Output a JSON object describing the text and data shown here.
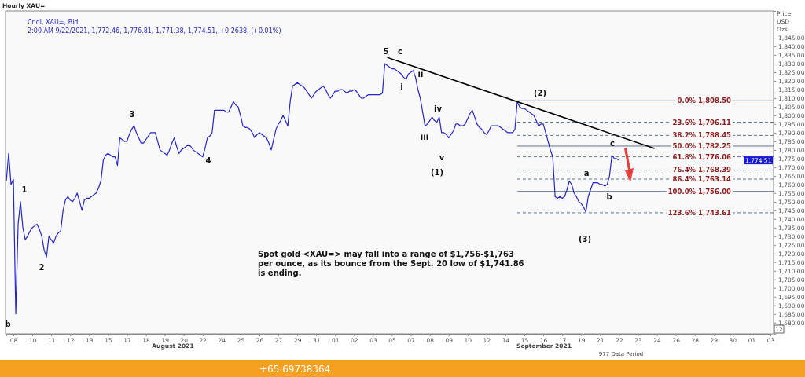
{
  "chart_data": {
    "type": "line",
    "title": "Hourly XAU=",
    "subtitle": "Cndl, XAU=, Bid",
    "ylabel": "Price\nUSD\nOzs",
    "categories": [
      null,
      null,
      null,
      "08",
      null,
      null,
      null,
      null,
      null,
      null,
      null,
      "10",
      null,
      null,
      null,
      null,
      null,
      null,
      null,
      "11",
      null,
      null,
      null,
      null,
      null,
      null,
      null,
      "12",
      null,
      null,
      null,
      null,
      null,
      null,
      null,
      "13",
      null,
      null,
      null,
      null,
      null,
      null,
      null,
      "15",
      null,
      null,
      null,
      null,
      null,
      null,
      null,
      "17",
      null,
      null,
      null,
      null,
      null,
      null,
      null,
      "18",
      null,
      null,
      null,
      null,
      null,
      null,
      null,
      "19",
      null,
      null,
      null,
      null,
      null,
      null,
      null,
      "20",
      null,
      null,
      null,
      null,
      null,
      null,
      null,
      "22",
      null,
      null,
      null,
      null,
      null,
      null,
      null,
      "24",
      null,
      null,
      null,
      null,
      null,
      null,
      null,
      "25",
      null,
      null,
      null,
      null,
      null,
      null,
      null,
      "26",
      null,
      null,
      null,
      null,
      null,
      null,
      null,
      "27",
      null,
      null,
      null,
      null,
      null,
      null,
      null,
      "29",
      null,
      null,
      null,
      null,
      null,
      null,
      null,
      "31",
      null,
      null,
      null,
      null,
      null,
      null,
      null,
      "01",
      null,
      null,
      null,
      null,
      null,
      null,
      null,
      "02",
      null,
      null,
      null,
      null,
      null,
      null,
      null,
      "03",
      null,
      null,
      null,
      null,
      null,
      null,
      null,
      "05",
      null,
      null,
      null,
      null,
      null,
      null,
      null,
      "07",
      null,
      null,
      null,
      null,
      null,
      null,
      null,
      "08",
      null,
      null,
      null,
      null,
      null,
      null,
      null,
      "09",
      null,
      null,
      null,
      null,
      null,
      null,
      null,
      "10",
      null,
      null,
      null,
      null,
      null,
      null,
      null,
      "12",
      null,
      null,
      null,
      null,
      null,
      null,
      null,
      "14",
      null,
      null,
      null,
      null,
      null,
      null,
      null,
      "15",
      null,
      null,
      null,
      null,
      null,
      null,
      null,
      "16",
      null,
      null,
      null,
      null,
      null,
      null,
      null,
      "17",
      null,
      null,
      null,
      null,
      null,
      null,
      null,
      "19",
      null,
      null,
      null,
      null,
      null,
      null,
      null,
      "21",
      null,
      null,
      null,
      null,
      null,
      null,
      null,
      "22",
      null,
      null,
      null,
      null,
      null,
      null,
      null,
      "23",
      null,
      null,
      null,
      null,
      null,
      null,
      null,
      "24",
      null,
      null,
      null,
      null,
      null,
      null,
      null,
      "26",
      null,
      null,
      null,
      null,
      null,
      null,
      null,
      "28",
      null,
      null,
      null,
      null,
      null,
      null,
      null,
      "29",
      null,
      null,
      null,
      null,
      null,
      null,
      null,
      "30",
      null,
      null,
      null,
      null,
      null,
      null,
      null,
      "01",
      null,
      null,
      null,
      null,
      null,
      null,
      null,
      "03"
    ],
    "ylim": [
      1673.5,
      1860.5
    ],
    "yticks": [
      {
        "value": 1680,
        "label": "1,680.00"
      },
      {
        "value": 1685,
        "label": "1,685.00"
      },
      {
        "value": 1690,
        "label": "1,690.00"
      },
      {
        "value": 1695,
        "label": "1,695.00"
      },
      {
        "value": 1700,
        "label": "1,700.00"
      },
      {
        "value": 1705,
        "label": "1,705.00"
      },
      {
        "value": 1710,
        "label": "1,710.00"
      },
      {
        "value": 1715,
        "label": "1,715.00"
      },
      {
        "value": 1720,
        "label": "1,720.00"
      },
      {
        "value": 1725,
        "label": "1,725.00"
      },
      {
        "value": 1730,
        "label": "1,730.00"
      },
      {
        "value": 1735,
        "label": "1,735.00"
      },
      {
        "value": 1740,
        "label": "1,740.00"
      },
      {
        "value": 1745,
        "label": "1,745.00"
      },
      {
        "value": 1750,
        "label": "1,750.00"
      },
      {
        "value": 1755,
        "label": "1,755.00"
      },
      {
        "value": 1760,
        "label": "1,760.00"
      },
      {
        "value": 1765,
        "label": "1,765.00"
      },
      {
        "value": 1770,
        "label": "1,770.00"
      },
      {
        "value": 1775,
        "label": "1,775.00"
      },
      {
        "value": 1780,
        "label": "1,780.00"
      },
      {
        "value": 1785,
        "label": "1,785.00"
      },
      {
        "value": 1790,
        "label": "1,790.00"
      },
      {
        "value": 1795,
        "label": "1,795.00"
      },
      {
        "value": 1800,
        "label": "1,800.00"
      },
      {
        "value": 1805,
        "label": "1,805.00"
      },
      {
        "value": 1810,
        "label": "1,810.00"
      },
      {
        "value": 1815,
        "label": "1,815.00"
      },
      {
        "value": 1820,
        "label": "1,820.00"
      },
      {
        "value": 1825,
        "label": "1,825.00"
      },
      {
        "value": 1830,
        "label": "1,830.00"
      },
      {
        "value": 1835,
        "label": "1,835.00"
      },
      {
        "value": 1840,
        "label": "1,840.00"
      },
      {
        "value": 1845,
        "label": "1,845.00"
      }
    ],
    "series": [
      {
        "color": "#2626c8",
        "values": [
          1762,
          1778,
          1760,
          1763,
          1685,
          1737,
          1750,
          1735,
          1728,
          1730,
          1733,
          1735,
          1736,
          1737,
          1734,
          1730,
          1722,
          1718,
          1730,
          1728,
          1726,
          1730,
          1732,
          1733,
          1745,
          1751,
          1753,
          1751,
          1750,
          1752,
          1755,
          1750,
          1745,
          1751,
          1752,
          1752,
          1753,
          1754,
          1755,
          1758,
          1762,
          1774,
          1777,
          1778,
          1777,
          1776,
          1776,
          1771,
          1787,
          1786,
          1785,
          1785,
          1789,
          1792,
          1794,
          1790,
          1787,
          1784,
          1784,
          1786,
          1788,
          1790,
          1790,
          1790,
          1785,
          1780,
          1779,
          1778,
          1777,
          1780,
          1784,
          1787,
          1782,
          1778,
          1780,
          1781,
          1782,
          1783,
          1782,
          1780,
          1779,
          1778,
          1777,
          1776,
          1781,
          1787,
          1788,
          1790,
          1803,
          1803,
          1803,
          1803,
          1803,
          1802,
          1802,
          1805,
          1808,
          1806,
          1805,
          1800,
          1794,
          1793,
          1793,
          1792,
          1790,
          1787,
          1789,
          1790,
          1789,
          1788,
          1787,
          1784,
          1780,
          1786,
          1792,
          1795,
          1797,
          1800,
          1797,
          1794,
          1808,
          1817,
          1818,
          1819,
          1818,
          1817,
          1816,
          1814,
          1812,
          1810,
          1812,
          1814,
          1815,
          1816,
          1817,
          1815,
          1812,
          1810,
          1812,
          1814,
          1814,
          1815,
          1815,
          1814,
          1813,
          1814,
          1814,
          1815,
          1814,
          1812,
          1810,
          1810,
          1811,
          1812,
          1812,
          1812,
          1812,
          1812,
          1812,
          1813,
          1830,
          1829,
          1828,
          1827,
          1827,
          1826,
          1825,
          1824,
          1822,
          1821,
          1824,
          1825,
          1826,
          1822,
          1815,
          1810,
          1802,
          1794,
          1795,
          1797,
          1799,
          1797,
          1796,
          1799,
          1790,
          1790,
          1789,
          1787,
          1789,
          1791,
          1795,
          1795,
          1794,
          1794,
          1795,
          1798,
          1801,
          1803,
          1799,
          1795,
          1793,
          1792,
          1790,
          1789,
          1791,
          1794,
          1794,
          1794,
          1794,
          1793,
          1792,
          1791,
          1790,
          1790,
          1790,
          1792,
          1808,
          1805,
          1804,
          1804,
          1803,
          1802,
          1801,
          1800,
          1797,
          1794,
          1795,
          1795,
          1790,
          1785,
          1780,
          1776,
          1753,
          1752,
          1753,
          1752,
          1753,
          1757,
          1762,
          1760,
          1755,
          1753,
          1750,
          1749,
          1747,
          1744,
          1753,
          1757,
          1761,
          1761,
          1761,
          1760,
          1760,
          1759,
          1760,
          1765,
          1777,
          1775,
          1775,
          1774,
          null,
          null,
          null,
          null,
          null,
          null,
          null,
          null,
          null,
          null,
          null,
          null,
          null,
          null,
          null,
          null,
          null,
          null,
          null,
          null,
          null,
          null,
          null,
          null,
          null,
          null,
          null,
          null,
          null,
          null,
          null,
          null,
          null,
          null,
          null,
          null,
          null,
          null,
          null,
          null,
          null,
          null,
          null,
          null,
          null,
          null,
          null,
          null,
          null,
          null,
          null,
          null,
          null,
          null,
          null,
          null,
          null,
          null,
          null,
          null,
          null,
          null,
          null,
          null
        ]
      },
      {
        "type": "line",
        "color": "#000000",
        "values": [
          null,
          null,
          null,
          null,
          null,
          null,
          null,
          null,
          null,
          null,
          null,
          null,
          null,
          null,
          null,
          null,
          null,
          null,
          null,
          null,
          null,
          null,
          null,
          null,
          null,
          null,
          null,
          null,
          null,
          null,
          null,
          null,
          null,
          null,
          null,
          null,
          null,
          null,
          null,
          null,
          null,
          null,
          null,
          null,
          null,
          null,
          null,
          null,
          null,
          null,
          null,
          null,
          null,
          null,
          null,
          null,
          null,
          null,
          null,
          null,
          null,
          null,
          null,
          null,
          null,
          null,
          null,
          null,
          null,
          null,
          null,
          null,
          null,
          null,
          null,
          null,
          null,
          null,
          null,
          null,
          null,
          null,
          null,
          null,
          null,
          null,
          null,
          null,
          null,
          null,
          null,
          null,
          null,
          null,
          null,
          null,
          null,
          null,
          null,
          null,
          null,
          null,
          null,
          null,
          null,
          null,
          null,
          null,
          null,
          null,
          null,
          null,
          null,
          null,
          null,
          null,
          null,
          null,
          null,
          null,
          null,
          null,
          null,
          null,
          null,
          null,
          null,
          null,
          null,
          null,
          null,
          null,
          null,
          null,
          null,
          null,
          null,
          null,
          null,
          null,
          null,
          null,
          null,
          null,
          null,
          null,
          null,
          null,
          null,
          null,
          null,
          null,
          null,
          null,
          null,
          null,
          null,
          null,
          null,
          null,
          null,
          1833.6,
          null,
          null,
          null,
          null,
          null,
          null,
          null,
          null,
          null,
          null,
          null,
          null,
          null,
          null,
          null,
          null,
          null,
          null,
          null,
          null,
          null,
          null,
          null,
          null,
          null,
          null,
          null,
          null,
          null,
          null,
          null,
          null,
          null,
          null,
          null,
          null,
          null,
          null,
          null,
          null,
          null,
          null,
          null,
          null,
          null,
          null,
          null,
          null,
          null,
          null,
          null,
          null,
          null,
          null,
          null,
          null,
          null,
          null,
          null,
          null,
          null,
          null,
          null,
          null,
          null,
          null,
          null,
          null,
          null,
          null,
          null,
          null,
          null,
          null,
          null,
          null,
          null,
          null,
          null,
          null,
          null,
          null,
          null,
          null,
          null,
          null,
          null,
          null,
          null,
          null,
          null,
          null,
          null,
          null,
          null,
          null,
          null,
          null,
          null,
          null,
          null,
          null,
          null,
          null,
          null,
          null,
          null,
          null,
          null,
          null,
          null,
          null,
          1780.9,
          null,
          null,
          null,
          null,
          null,
          null,
          null,
          null,
          null,
          null,
          null,
          null,
          null,
          null,
          null,
          null,
          null,
          null,
          null,
          null,
          null,
          null,
          null,
          null,
          null,
          null,
          null,
          null,
          null,
          null,
          null,
          null,
          null,
          null,
          null,
          null,
          null,
          null,
          null,
          null,
          null,
          null,
          null,
          null,
          null,
          null,
          null,
          null,
          null
        ]
      }
    ],
    "ref_lines": [
      {
        "axis": "y",
        "value": 1808.5,
        "label": "0.0% 1,808.50",
        "color": "#5a7894",
        "line_style": "solid"
      },
      {
        "axis": "y",
        "value": 1796.11,
        "label": "23.6% 1,796.11",
        "color": "#5a7894",
        "line_style": "dashed"
      },
      {
        "axis": "y",
        "value": 1788.45,
        "label": "38.2% 1,788.45",
        "color": "#5a7894",
        "line_style": "dashed"
      },
      {
        "axis": "y",
        "value": 1782.25,
        "label": "50.0% 1,782.25",
        "color": "#5a7894",
        "line_style": "solid"
      },
      {
        "axis": "y",
        "value": 1776.06,
        "label": "61.8% 1,776.06",
        "color": "#5a7894",
        "line_style": "dashed"
      },
      {
        "axis": "y",
        "value": 1768.39,
        "label": "76.4% 1,768.39",
        "color": "#5a7894",
        "line_style": "dashed"
      },
      {
        "axis": "y",
        "value": 1763.14,
        "label": "86.4% 1,763.14",
        "color": "#5a7894",
        "line_style": "dashed"
      },
      {
        "axis": "y",
        "value": 1756.0,
        "label": "100.0% 1,756.00",
        "color": "#5a7894",
        "line_style": "solid"
      },
      {
        "axis": "y",
        "value": 1743.61,
        "label": "123.6% 1,743.61",
        "color": "#5a7894",
        "line_style": "dashed"
      }
    ],
    "annotations": [
      "2:00 AM 9/22/2021, 1,772.46, 1,776.81, 1,771.38, 1,774.51, +0.2638, (+0.01%)",
      "Spot gold <XAU=> may fall into a range of $1,756-$1,763\nper ounce, as its bounce from the Sept. 20 low of $1,741.86\nis ending.",
      "August 2021",
      "September 2021",
      "977 Data Period",
      "+65 69738364",
      "1,774.51",
      "12",
      "b",
      "1",
      "2",
      "3",
      "4",
      "5",
      "c",
      "i",
      "ii",
      "iii",
      "iv",
      "v",
      "(1)",
      "(2)",
      "c",
      "a",
      "b",
      "(3)"
    ]
  }
}
